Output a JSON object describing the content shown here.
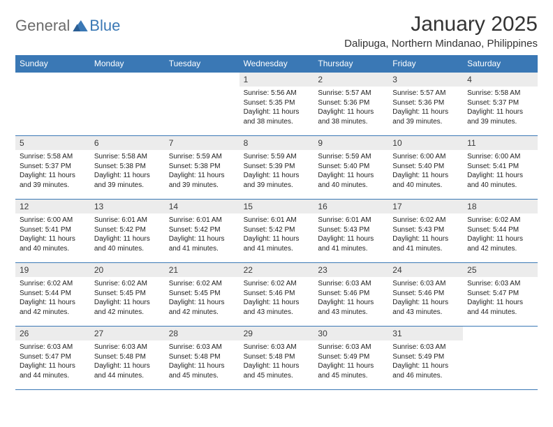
{
  "brand": {
    "general": "General",
    "blue": "Blue"
  },
  "colors": {
    "header_bg": "#3a78b5",
    "daynum_bg": "#ececec",
    "rule": "#3a78b5",
    "text": "#333333",
    "logo_gray": "#6b6b6b",
    "logo_blue": "#3a78b5",
    "background": "#ffffff"
  },
  "title": "January 2025",
  "location": "Dalipuga, Northern Mindanao, Philippines",
  "days_of_week": [
    "Sunday",
    "Monday",
    "Tuesday",
    "Wednesday",
    "Thursday",
    "Friday",
    "Saturday"
  ],
  "labels": {
    "sunrise": "Sunrise:",
    "sunset": "Sunset:",
    "daylight": "Daylight:"
  },
  "weeks": [
    [
      null,
      null,
      null,
      {
        "n": "1",
        "sunrise": "5:56 AM",
        "sunset": "5:35 PM",
        "daylight": "11 hours and 38 minutes."
      },
      {
        "n": "2",
        "sunrise": "5:57 AM",
        "sunset": "5:36 PM",
        "daylight": "11 hours and 38 minutes."
      },
      {
        "n": "3",
        "sunrise": "5:57 AM",
        "sunset": "5:36 PM",
        "daylight": "11 hours and 39 minutes."
      },
      {
        "n": "4",
        "sunrise": "5:58 AM",
        "sunset": "5:37 PM",
        "daylight": "11 hours and 39 minutes."
      }
    ],
    [
      {
        "n": "5",
        "sunrise": "5:58 AM",
        "sunset": "5:37 PM",
        "daylight": "11 hours and 39 minutes."
      },
      {
        "n": "6",
        "sunrise": "5:58 AM",
        "sunset": "5:38 PM",
        "daylight": "11 hours and 39 minutes."
      },
      {
        "n": "7",
        "sunrise": "5:59 AM",
        "sunset": "5:38 PM",
        "daylight": "11 hours and 39 minutes."
      },
      {
        "n": "8",
        "sunrise": "5:59 AM",
        "sunset": "5:39 PM",
        "daylight": "11 hours and 39 minutes."
      },
      {
        "n": "9",
        "sunrise": "5:59 AM",
        "sunset": "5:40 PM",
        "daylight": "11 hours and 40 minutes."
      },
      {
        "n": "10",
        "sunrise": "6:00 AM",
        "sunset": "5:40 PM",
        "daylight": "11 hours and 40 minutes."
      },
      {
        "n": "11",
        "sunrise": "6:00 AM",
        "sunset": "5:41 PM",
        "daylight": "11 hours and 40 minutes."
      }
    ],
    [
      {
        "n": "12",
        "sunrise": "6:00 AM",
        "sunset": "5:41 PM",
        "daylight": "11 hours and 40 minutes."
      },
      {
        "n": "13",
        "sunrise": "6:01 AM",
        "sunset": "5:42 PM",
        "daylight": "11 hours and 40 minutes."
      },
      {
        "n": "14",
        "sunrise": "6:01 AM",
        "sunset": "5:42 PM",
        "daylight": "11 hours and 41 minutes."
      },
      {
        "n": "15",
        "sunrise": "6:01 AM",
        "sunset": "5:42 PM",
        "daylight": "11 hours and 41 minutes."
      },
      {
        "n": "16",
        "sunrise": "6:01 AM",
        "sunset": "5:43 PM",
        "daylight": "11 hours and 41 minutes."
      },
      {
        "n": "17",
        "sunrise": "6:02 AM",
        "sunset": "5:43 PM",
        "daylight": "11 hours and 41 minutes."
      },
      {
        "n": "18",
        "sunrise": "6:02 AM",
        "sunset": "5:44 PM",
        "daylight": "11 hours and 42 minutes."
      }
    ],
    [
      {
        "n": "19",
        "sunrise": "6:02 AM",
        "sunset": "5:44 PM",
        "daylight": "11 hours and 42 minutes."
      },
      {
        "n": "20",
        "sunrise": "6:02 AM",
        "sunset": "5:45 PM",
        "daylight": "11 hours and 42 minutes."
      },
      {
        "n": "21",
        "sunrise": "6:02 AM",
        "sunset": "5:45 PM",
        "daylight": "11 hours and 42 minutes."
      },
      {
        "n": "22",
        "sunrise": "6:02 AM",
        "sunset": "5:46 PM",
        "daylight": "11 hours and 43 minutes."
      },
      {
        "n": "23",
        "sunrise": "6:03 AM",
        "sunset": "5:46 PM",
        "daylight": "11 hours and 43 minutes."
      },
      {
        "n": "24",
        "sunrise": "6:03 AM",
        "sunset": "5:46 PM",
        "daylight": "11 hours and 43 minutes."
      },
      {
        "n": "25",
        "sunrise": "6:03 AM",
        "sunset": "5:47 PM",
        "daylight": "11 hours and 44 minutes."
      }
    ],
    [
      {
        "n": "26",
        "sunrise": "6:03 AM",
        "sunset": "5:47 PM",
        "daylight": "11 hours and 44 minutes."
      },
      {
        "n": "27",
        "sunrise": "6:03 AM",
        "sunset": "5:48 PM",
        "daylight": "11 hours and 44 minutes."
      },
      {
        "n": "28",
        "sunrise": "6:03 AM",
        "sunset": "5:48 PM",
        "daylight": "11 hours and 45 minutes."
      },
      {
        "n": "29",
        "sunrise": "6:03 AM",
        "sunset": "5:48 PM",
        "daylight": "11 hours and 45 minutes."
      },
      {
        "n": "30",
        "sunrise": "6:03 AM",
        "sunset": "5:49 PM",
        "daylight": "11 hours and 45 minutes."
      },
      {
        "n": "31",
        "sunrise": "6:03 AM",
        "sunset": "5:49 PM",
        "daylight": "11 hours and 46 minutes."
      },
      null
    ]
  ]
}
